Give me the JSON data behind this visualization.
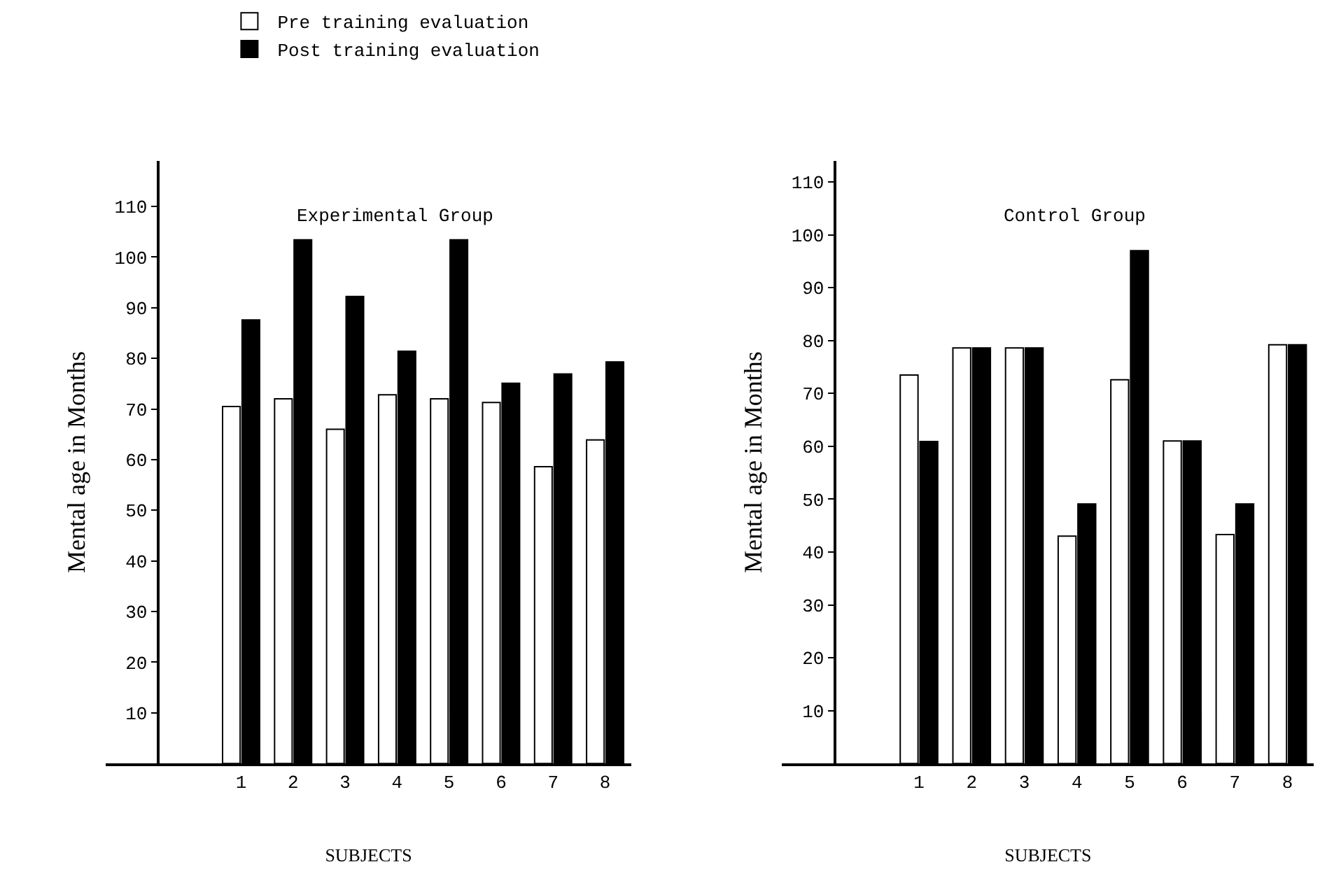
{
  "chart_data": [
    {
      "type": "bar",
      "title": "Experimental Group",
      "xlabel": "SUBJECTS",
      "ylabel": "Mental age in Months",
      "categories": [
        "1",
        "2",
        "3",
        "4",
        "5",
        "6",
        "7",
        "8"
      ],
      "series": [
        {
          "name": "Pre training evaluation",
          "color": "#ffffff",
          "values": [
            70.5,
            72,
            66,
            72.8,
            72,
            71.3,
            58.6,
            63.9
          ]
        },
        {
          "name": "Post training evaluation",
          "color": "#000000",
          "values": [
            87.6,
            103.4,
            92.2,
            81.4,
            103.4,
            75.1,
            76.9,
            79.3
          ]
        }
      ],
      "ylim": [
        0,
        119
      ],
      "yticks": [
        10,
        20,
        30,
        40,
        50,
        60,
        70,
        80,
        90,
        100,
        110
      ],
      "legend": "top left"
    },
    {
      "type": "bar",
      "title": "Control Group",
      "xlabel": "SUBJECTS",
      "ylabel": "Mental age in Months",
      "categories": [
        "1",
        "2",
        "3",
        "4",
        "5",
        "6",
        "7",
        "8"
      ],
      "series": [
        {
          "color": "#ffffff",
          "values": [
            73.5,
            78.6,
            78.6,
            43,
            72.6,
            61,
            43.3,
            79.2
          ]
        },
        {
          "color": "#000000",
          "values": [
            60.9,
            78.6,
            78.6,
            49.1,
            97,
            61,
            49.1,
            79.2
          ]
        }
      ],
      "ylim": [
        0,
        114
      ],
      "yticks": [
        10,
        20,
        30,
        40,
        50,
        60,
        70,
        80,
        90,
        100,
        110
      ],
      "legend": false
    }
  ]
}
